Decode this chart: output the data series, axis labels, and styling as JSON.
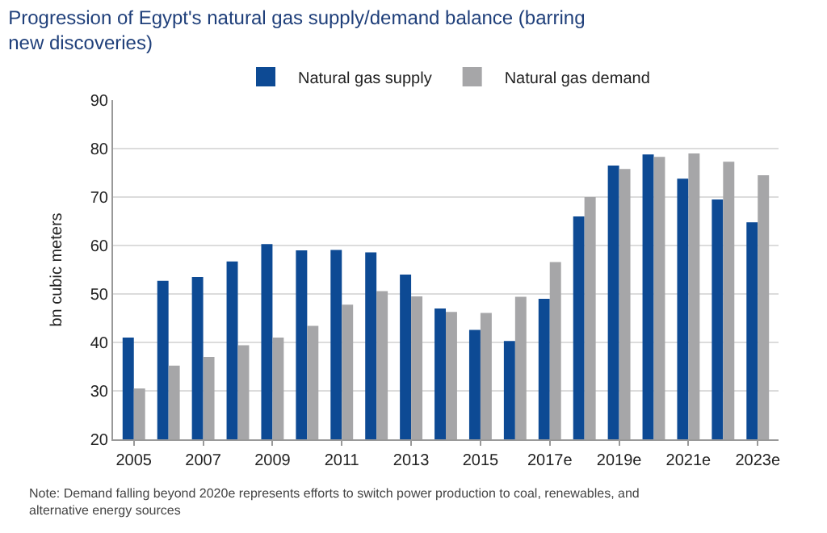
{
  "chart_data": {
    "type": "bar",
    "title": "Progression of Egypt's natural gas supply/demand balance (barring new discoveries)",
    "ylabel": "bn cubic meters",
    "categories": [
      "2005",
      null,
      "2007",
      null,
      "2009",
      null,
      "2011",
      null,
      "2013",
      null,
      "2015",
      null,
      "2017e",
      null,
      "2019e",
      null,
      "2021e",
      null,
      "2023e"
    ],
    "series": [
      {
        "name": "Natural gas supply",
        "color": "#0d4a94",
        "values": [
          41,
          52.7,
          53.5,
          56.7,
          60.3,
          59,
          59.1,
          58.6,
          54,
          47,
          42.6,
          40.3,
          49,
          66,
          76.5,
          78.8,
          73.8,
          69.5,
          64.8
        ]
      },
      {
        "name": "Natural gas demand",
        "color": "#a6a6a8",
        "values": [
          30.5,
          35.2,
          37,
          39.4,
          41,
          43.4,
          47.8,
          50.6,
          49.5,
          46.3,
          46.1,
          49.4,
          56.6,
          70,
          75.8,
          78.3,
          79,
          77.3,
          74.5
        ]
      }
    ],
    "ylim": [
      20,
      90
    ],
    "yticks": [
      20,
      30,
      40,
      50,
      60,
      70,
      80,
      90
    ],
    "grid": "y",
    "legend": "top",
    "annotations": [
      "Note: Demand falling beyond 2020e represents efforts to switch power production to coal, renewables, and alternative energy sources"
    ]
  }
}
